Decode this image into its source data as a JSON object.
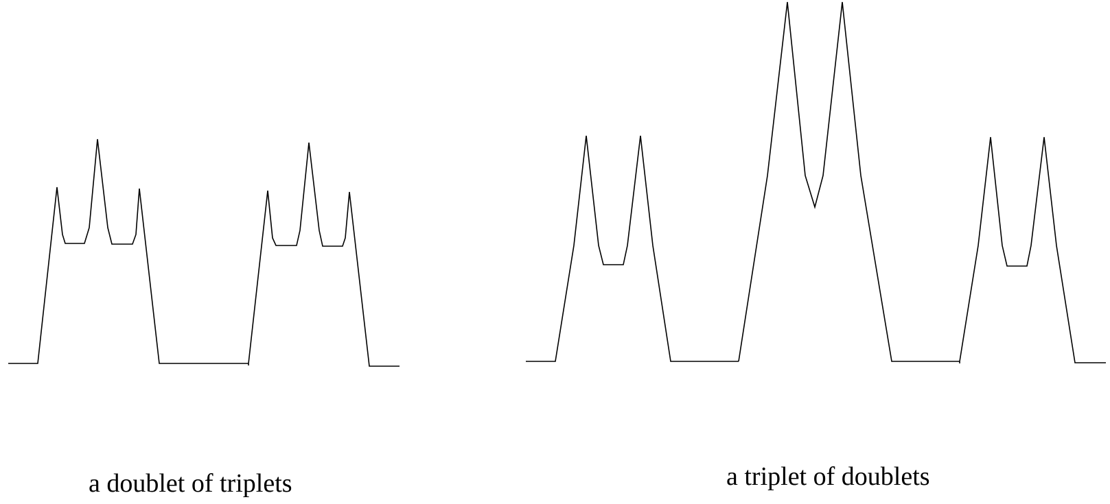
{
  "panels": [
    {
      "name": "doublet-of-triplets",
      "caption": "a doublet of triplets"
    },
    {
      "name": "triplet-of-doublets",
      "caption": "a triplet of doublets"
    }
  ],
  "colors": {
    "background": "#ffffff",
    "line": "#000000"
  }
}
